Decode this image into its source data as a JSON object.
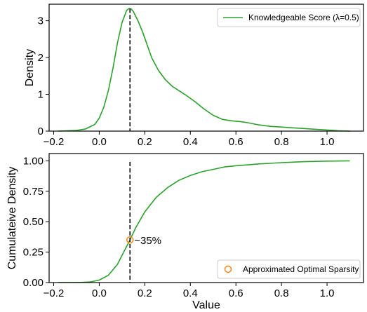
{
  "chart_data": [
    {
      "type": "line",
      "ylabel": "Density",
      "xlabel": "",
      "xlim": [
        -0.22,
        1.16
      ],
      "ylim": [
        0,
        3.45
      ],
      "xticks": [
        -0.2,
        0.0,
        0.2,
        0.4,
        0.6,
        0.8,
        1.0
      ],
      "xtick_labels": [
        "−0.2",
        "0.0",
        "0.2",
        "0.4",
        "0.6",
        "0.8",
        "1.0"
      ],
      "yticks": [
        0,
        1,
        2,
        3
      ],
      "ytick_labels": [
        "0",
        "1",
        "2",
        "3"
      ],
      "grid": false,
      "legend_position": "top-right",
      "series": [
        {
          "name": "Knowledgeable Score (λ=0.5)",
          "color": "#2ca02c",
          "x": [
            -0.18,
            -0.1,
            -0.06,
            -0.02,
            0.0,
            0.02,
            0.04,
            0.06,
            0.08,
            0.1,
            0.12,
            0.13,
            0.14,
            0.15,
            0.17,
            0.19,
            0.21,
            0.23,
            0.26,
            0.29,
            0.32,
            0.35,
            0.38,
            0.42,
            0.46,
            0.5,
            0.54,
            0.58,
            0.62,
            0.66,
            0.7,
            0.75,
            0.8,
            0.85,
            0.9,
            0.95,
            1.0,
            1.05,
            1.1
          ],
          "y": [
            0.0,
            0.02,
            0.06,
            0.18,
            0.35,
            0.65,
            1.1,
            1.7,
            2.4,
            2.95,
            3.28,
            3.33,
            3.32,
            3.25,
            3.0,
            2.7,
            2.35,
            2.0,
            1.65,
            1.4,
            1.22,
            1.1,
            0.98,
            0.8,
            0.6,
            0.43,
            0.32,
            0.28,
            0.26,
            0.22,
            0.17,
            0.13,
            0.11,
            0.09,
            0.07,
            0.05,
            0.03,
            0.01,
            0.0
          ]
        }
      ],
      "vline": {
        "x": 0.135,
        "style": "dashed",
        "color": "#000000"
      }
    },
    {
      "type": "line",
      "ylabel": "Cumulateive Density",
      "xlabel": "Value",
      "xlim": [
        -0.22,
        1.16
      ],
      "ylim": [
        0,
        1.06
      ],
      "xticks": [
        -0.2,
        0.0,
        0.2,
        0.4,
        0.6,
        0.8,
        1.0
      ],
      "xtick_labels": [
        "−0.2",
        "0.0",
        "0.2",
        "0.4",
        "0.6",
        "0.8",
        "1.0"
      ],
      "yticks": [
        0.0,
        0.25,
        0.5,
        0.75,
        1.0
      ],
      "ytick_labels": [
        "0.00",
        "0.25",
        "0.50",
        "0.75",
        "1.00"
      ],
      "grid": false,
      "legend_position": "bottom-right",
      "series": [
        {
          "color": "#2ca02c",
          "x": [
            -0.18,
            -0.1,
            -0.04,
            0.0,
            0.04,
            0.08,
            0.11,
            0.135,
            0.16,
            0.2,
            0.25,
            0.3,
            0.35,
            0.4,
            0.45,
            0.5,
            0.55,
            0.6,
            0.7,
            0.8,
            0.9,
            1.0,
            1.1
          ],
          "y": [
            0.0,
            0.0,
            0.005,
            0.02,
            0.06,
            0.15,
            0.26,
            0.35,
            0.45,
            0.58,
            0.7,
            0.78,
            0.84,
            0.88,
            0.91,
            0.93,
            0.95,
            0.96,
            0.975,
            0.985,
            0.993,
            0.998,
            1.0
          ]
        }
      ],
      "vline": {
        "x": 0.135,
        "style": "dashed",
        "color": "#000000"
      },
      "marker": {
        "name": "Approximated Optimal Sparsity",
        "x": 0.135,
        "y": 0.35,
        "color": "#ff7f0e",
        "label": "~35%"
      }
    }
  ]
}
